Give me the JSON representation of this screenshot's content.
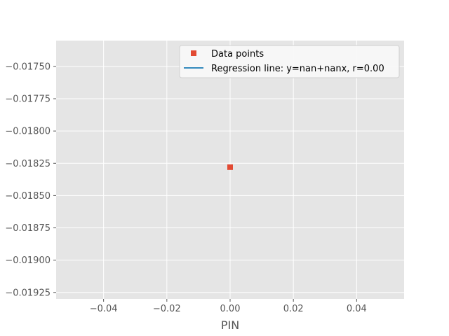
{
  "chart_data": {
    "type": "scatter",
    "title": "",
    "xlabel": "PIN",
    "ylabel": "",
    "xlim": [
      -0.055,
      0.055
    ],
    "ylim": [
      -0.0193,
      -0.0173
    ],
    "grid": true,
    "x_ticks": [
      -0.04,
      -0.02,
      0.0,
      0.02,
      0.04
    ],
    "x_tick_labels": [
      "−0.04",
      "−0.02",
      "0.00",
      "0.02",
      "0.04"
    ],
    "y_ticks": [
      -0.0175,
      -0.01775,
      -0.018,
      -0.01825,
      -0.0185,
      -0.01875,
      -0.019,
      -0.01925
    ],
    "y_tick_labels": [
      "−0.01750",
      "−0.01775",
      "−0.01800",
      "−0.01825",
      "−0.01850",
      "−0.01875",
      "−0.01900",
      "−0.01925"
    ],
    "legend_position": "top-right",
    "series": [
      {
        "name": "Data points",
        "kind": "scatter",
        "marker": "square",
        "color": "#E24A33",
        "points": [
          {
            "x": 0.0,
            "y": -0.01828
          }
        ]
      },
      {
        "name": "Regression line: y=nan+nanx, r=0.00",
        "kind": "line",
        "color": "#348ABD",
        "points": []
      }
    ]
  }
}
